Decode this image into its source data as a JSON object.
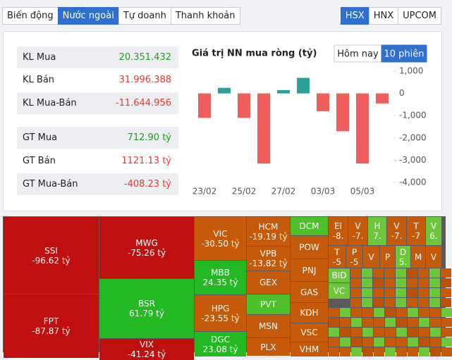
{
  "tabs": {
    "items": [
      "Biến động",
      "Nước ngoài",
      "Tự doanh",
      "Thanh khoản"
    ],
    "active": 1
  },
  "exchanges": {
    "items": [
      "HSX",
      "HNX",
      "UPCOM"
    ],
    "active": 0
  },
  "stats": [
    {
      "label": "KL Mua",
      "value": "20.351.432",
      "color": "#1e9e1e"
    },
    {
      "label": "KL Bán",
      "value": "31.996.388",
      "color": "#e53935"
    },
    {
      "label": "KL Mua-Bán",
      "value": "-11.644.956",
      "color": "#e53935"
    },
    {
      "label": "GT Mua",
      "value": "712.90 tỷ",
      "color": "#1e9e1e"
    },
    {
      "label": "GT Bán",
      "value": "1121.13 tỷ",
      "color": "#e53935"
    },
    {
      "label": "GT Mua-Bán",
      "value": "-408.23 tỷ",
      "color": "#e53935"
    }
  ],
  "chart": {
    "type": "bar",
    "title": "Giá trị NN mua ròng (tỷ)",
    "toggle": {
      "items": [
        "Hôm nay",
        "10 phiên"
      ],
      "active": 1
    },
    "categories": [
      "23/02",
      null,
      "25/02",
      null,
      "27/02",
      null,
      "03/03",
      null,
      "05/03",
      null
    ],
    "values": [
      -1100,
      250,
      -1100,
      -3150,
      150,
      700,
      -800,
      -1700,
      -3150,
      -450
    ],
    "positive_color": "#2aa198",
    "negative_color": "#ef5d5d",
    "ylim": [
      -4000,
      1000
    ],
    "yticks": [
      {
        "value": 1000,
        "label": "1,000"
      },
      0,
      {
        "value": -1000,
        "label": "-1,000"
      },
      {
        "value": -2000,
        "label": "-2,000"
      },
      {
        "value": -3000,
        "label": "-3,000"
      },
      {
        "value": -4000,
        "label": "-4,000"
      }
    ],
    "grid": false
  },
  "treemap": [
    {
      "name": "SSI",
      "value": "-96.62 tỷ",
      "color": "#c00f0f"
    },
    {
      "name": "FPT",
      "value": "-87.87 tỷ",
      "color": "#c00f0f"
    },
    {
      "name": "MWG",
      "value": "-75.26 tỷ",
      "color": "#c00f0f"
    },
    {
      "name": "BSR",
      "value": "61.79 tỷ",
      "color": "#22b922"
    },
    {
      "name": "VIX",
      "value": "-41.24 tỷ",
      "color": "#c00f0f"
    },
    {
      "name": "VIC",
      "value": "-30.50 tỷ",
      "color": "#c55a0b"
    },
    {
      "name": "MBB",
      "value": "24.35 tỷ",
      "color": "#22b922"
    },
    {
      "name": "HPG",
      "value": "-23.55 tỷ",
      "color": "#c55a0b"
    },
    {
      "name": "DGC",
      "value": "23.08 tỷ",
      "color": "#22b922"
    },
    {
      "name": "HCM",
      "value": "-19.19 tỷ",
      "color": "#c55a0b"
    },
    {
      "name": "VPB",
      "value": "-13.82 tỷ",
      "color": "#c55a0b"
    },
    {
      "name": "GEX",
      "color": "#c55a0b"
    },
    {
      "name": "PVT",
      "color": "#4cc12a"
    },
    {
      "name": "MSN",
      "color": "#c55a0b"
    },
    {
      "name": "PLX",
      "color": "#c55a0b"
    },
    {
      "name": "DCM",
      "color": "#4cc12a"
    },
    {
      "name": "POW",
      "color": "#c55a0b"
    },
    {
      "name": "PNJ",
      "color": "#c55a0b"
    },
    {
      "name": "GAS",
      "color": "#c55a0b"
    },
    {
      "name": "KDH",
      "color": "#c55a0b"
    },
    {
      "name": "VSC",
      "color": "#c55a0b"
    },
    {
      "name": "VHM",
      "color": "#c55a0b"
    },
    {
      "name": "EI",
      "value": "-8.",
      "color": "#c55a0b"
    },
    {
      "name": "V",
      "value": "-7.",
      "color": "#c55a0b"
    },
    {
      "name": "H",
      "value": "7.",
      "color": "#6cc83a"
    },
    {
      "name": "V",
      "value": "-7.",
      "color": "#c55a0b"
    },
    {
      "name": "T",
      "value": "-7",
      "color": "#c55a0b"
    },
    {
      "name": "V",
      "value": "6.",
      "color": "#6cc83a"
    },
    {
      "name": "T",
      "value": "-5",
      "color": "#c55a0b"
    },
    {
      "name": "P",
      "value": "-5",
      "color": "#c55a0b"
    },
    {
      "name": "V",
      "color": "#c55a0b"
    },
    {
      "name": "P",
      "color": "#c55a0b"
    },
    {
      "name": "D",
      "value": "5.",
      "color": "#6cc83a"
    },
    {
      "name": "M",
      "color": "#c55a0b"
    },
    {
      "name": "V",
      "color": "#c55a0b"
    },
    {
      "name": "BID",
      "color": "#6cc83a"
    },
    {
      "name": "VC",
      "color": "#6cc83a"
    }
  ]
}
